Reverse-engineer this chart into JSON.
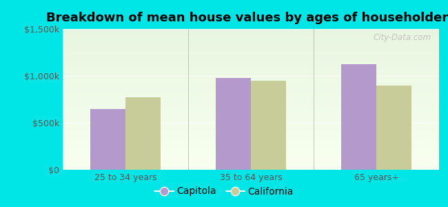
{
  "title": "Breakdown of mean house values by ages of householders",
  "categories": [
    "25 to 34 years",
    "35 to 64 years",
    "65 years+"
  ],
  "capitola_values": [
    650000,
    975000,
    1125000
  ],
  "california_values": [
    775000,
    950000,
    900000
  ],
  "capitola_color": "#b399cc",
  "california_color": "#c8cc99",
  "background_color": "#00e5e5",
  "grad_top": "#e8f5e0",
  "grad_bottom": "#f8fff0",
  "ylim": [
    0,
    1500000
  ],
  "yticks": [
    0,
    500000,
    1000000,
    1500000
  ],
  "ytick_labels": [
    "$0",
    "$500k",
    "$1,000k",
    "$1,500k"
  ],
  "legend_labels": [
    "Capitola",
    "California"
  ],
  "bar_width": 0.28,
  "title_fontsize": 13,
  "tick_fontsize": 9,
  "legend_fontsize": 10,
  "watermark": "City-Data.com"
}
